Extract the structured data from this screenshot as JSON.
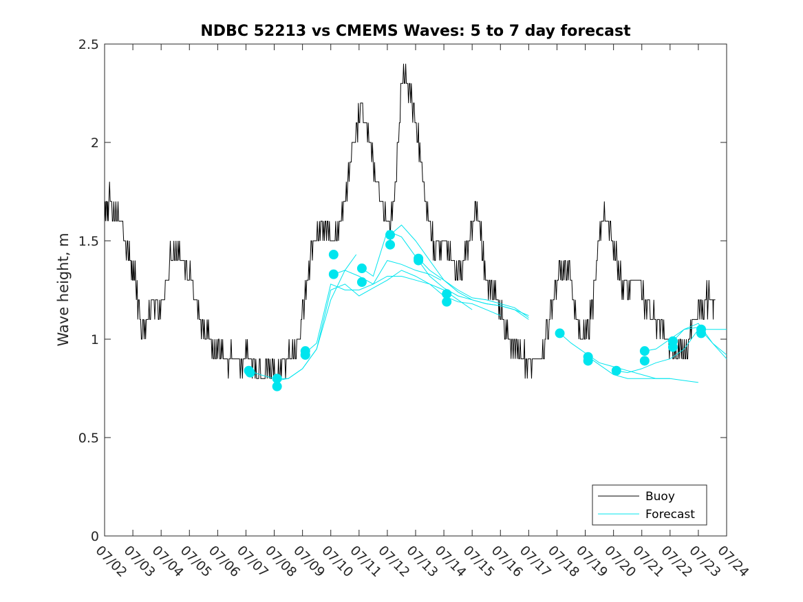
{
  "chart_data": {
    "type": "line",
    "title": "NDBC 52213 vs CMEMS Waves: 5 to 7 day forecast",
    "xlabel": "",
    "ylabel": "Wave height, m",
    "xlim": [
      "07/02",
      "07/24"
    ],
    "ylim": [
      0,
      2.5
    ],
    "categories": [
      "07/02",
      "07/03",
      "07/04",
      "07/05",
      "07/06",
      "07/07",
      "07/08",
      "07/09",
      "07/10",
      "07/11",
      "07/12",
      "07/13",
      "07/14",
      "07/15",
      "07/16",
      "07/17",
      "07/18",
      "07/19",
      "07/20",
      "07/21",
      "07/22",
      "07/23",
      "07/24"
    ],
    "yticks": [
      "0",
      "0.5",
      "1",
      "1.5",
      "2",
      "2.5"
    ],
    "grid": false,
    "legend_position": "bottom-right",
    "colors": {
      "buoy": "#000000",
      "forecast": "#00e5ee"
    },
    "series": [
      {
        "name": "Buoy",
        "x": [
          0.0,
          0.15,
          0.35,
          0.55,
          0.8,
          0.95,
          1.1,
          1.3,
          1.5,
          1.7,
          1.9,
          2.1,
          2.3,
          2.5,
          2.7,
          2.9,
          3.1,
          3.3,
          3.5,
          3.7,
          3.9,
          4.1,
          4.3,
          4.5,
          4.7,
          4.9,
          5.1,
          5.3,
          5.5,
          5.7,
          5.9,
          6.1,
          6.3,
          6.5,
          6.7,
          6.9,
          7.1,
          7.3,
          7.5,
          7.7,
          7.9,
          8.1,
          8.3,
          8.5,
          8.7,
          8.9,
          9.1,
          9.3,
          9.5,
          9.7,
          9.9,
          10.1,
          10.3,
          10.5,
          10.7,
          10.9,
          11.1,
          11.3,
          11.5,
          11.7,
          11.9,
          12.1,
          12.3,
          12.5,
          12.7,
          12.9,
          13.1,
          13.3,
          13.5,
          13.7,
          13.9,
          14.1,
          14.3,
          14.5,
          14.7,
          14.9,
          15.1,
          15.3,
          15.5,
          15.7,
          15.9,
          16.1,
          16.3,
          16.5,
          16.7,
          16.9,
          17.1,
          17.3,
          17.5,
          17.7,
          17.9,
          18.1,
          18.3,
          18.5,
          18.7,
          18.9,
          19.1,
          19.3,
          19.5,
          19.7,
          19.9,
          20.1,
          20.3,
          20.5,
          20.7,
          20.9,
          21.1,
          21.3,
          21.5,
          21.6
        ],
        "y": [
          1.58,
          1.7,
          1.65,
          1.6,
          1.45,
          1.35,
          1.3,
          1.0,
          1.1,
          1.2,
          1.15,
          1.2,
          1.4,
          1.45,
          1.4,
          1.35,
          1.3,
          1.15,
          1.05,
          1.0,
          0.95,
          0.92,
          0.9,
          0.9,
          0.9,
          0.9,
          0.9,
          0.85,
          0.83,
          0.82,
          0.85,
          0.82,
          0.86,
          0.9,
          0.95,
          1.0,
          1.2,
          1.45,
          1.55,
          1.6,
          1.55,
          1.5,
          1.6,
          1.7,
          1.9,
          2.05,
          2.2,
          2.05,
          1.9,
          1.75,
          1.65,
          1.55,
          1.8,
          2.3,
          2.3,
          2.2,
          2.0,
          1.75,
          1.55,
          1.45,
          1.5,
          1.45,
          1.4,
          1.35,
          1.4,
          1.5,
          1.65,
          1.55,
          1.3,
          1.25,
          1.2,
          1.1,
          1.0,
          0.95,
          0.92,
          0.9,
          0.88,
          0.9,
          0.95,
          1.05,
          1.25,
          1.35,
          1.38,
          1.3,
          1.1,
          1.0,
          1.05,
          1.2,
          1.55,
          1.65,
          1.55,
          1.4,
          1.3,
          1.25,
          1.28,
          1.3,
          1.2,
          1.15,
          1.1,
          1.05,
          1.0,
          0.95,
          0.92,
          0.95,
          1.02,
          1.1,
          1.15,
          1.2,
          1.2,
          1.2
        ]
      }
    ],
    "forecast_runs": [
      {
        "x": [
          5.1,
          5.5,
          6.0,
          6.5,
          7.0,
          7.5,
          8.0,
          8.5,
          8.9
        ],
        "y": [
          0.84,
          0.82,
          0.8,
          0.8,
          0.85,
          0.95,
          1.2,
          1.35,
          1.43
        ]
      },
      {
        "x": [
          6.1,
          6.5,
          7.0,
          7.5,
          8.0,
          8.5,
          9.0,
          9.5,
          10.0,
          10.5,
          11.0,
          11.5,
          12.0,
          12.5,
          13.0
        ],
        "y": [
          0.79,
          0.8,
          0.85,
          0.95,
          1.25,
          1.28,
          1.22,
          1.26,
          1.3,
          1.35,
          1.32,
          1.28,
          1.25,
          1.2,
          1.15
        ]
      },
      {
        "x": [
          7.1,
          7.5,
          8.0,
          8.5,
          9.0,
          9.5,
          10.0,
          10.5,
          11.0,
          11.5,
          12.0,
          12.5,
          13.0,
          13.5,
          14.0
        ],
        "y": [
          0.93,
          0.98,
          1.28,
          1.25,
          1.25,
          1.28,
          1.32,
          1.32,
          1.3,
          1.28,
          1.22,
          1.19,
          1.18,
          1.15,
          1.12
        ]
      },
      {
        "x": [
          8.1,
          8.5,
          9.0,
          9.5,
          10.0,
          10.5,
          11.0,
          11.5,
          11.9
        ],
        "y": [
          1.33,
          1.35,
          1.32,
          1.28,
          1.4,
          1.38,
          1.35,
          1.33,
          1.3
        ]
      },
      {
        "x": [
          9.1,
          9.5,
          10.0,
          10.5,
          11.0,
          11.5,
          12.0,
          12.5,
          13.0,
          13.5,
          14.0,
          14.5,
          15.0
        ],
        "y": [
          1.36,
          1.32,
          1.55,
          1.52,
          1.42,
          1.32,
          1.26,
          1.22,
          1.2,
          1.18,
          1.17,
          1.15,
          1.12
        ]
      },
      {
        "x": [
          10.1,
          10.5,
          11.0,
          11.5,
          12.0,
          12.5,
          13.0,
          13.5,
          14.0,
          14.5,
          15.0
        ],
        "y": [
          1.53,
          1.58,
          1.5,
          1.4,
          1.3,
          1.25,
          1.21,
          1.2,
          1.18,
          1.16,
          1.11
        ]
      },
      {
        "x": [
          11.1,
          11.5,
          12.0,
          12.5,
          13.0,
          13.5,
          14.0,
          14.5,
          15.0
        ],
        "y": [
          1.41,
          1.35,
          1.3,
          1.24,
          1.2,
          1.18,
          1.17,
          1.15,
          1.1
        ]
      },
      {
        "x": [
          16.1,
          16.5,
          17.0,
          17.5,
          18.0,
          18.5,
          19.0,
          19.5,
          20.0
        ],
        "y": [
          1.03,
          0.98,
          0.93,
          0.88,
          0.86,
          0.84,
          0.82,
          0.8,
          0.8
        ]
      },
      {
        "x": [
          17.1,
          17.5,
          18.0,
          18.5,
          19.0,
          19.5,
          20.0,
          20.5,
          21.0
        ],
        "y": [
          0.91,
          0.87,
          0.82,
          0.8,
          0.8,
          0.8,
          0.8,
          0.79,
          0.78
        ]
      },
      {
        "x": [
          18.1,
          18.5,
          19.0,
          19.5,
          20.0,
          20.5,
          21.0,
          21.5,
          22.0
        ],
        "y": [
          0.84,
          0.83,
          0.85,
          0.88,
          0.9,
          0.95,
          1.05,
          1.05,
          1.05
        ]
      },
      {
        "x": [
          19.1,
          19.5,
          20.0,
          20.5,
          21.0,
          21.5,
          22.0
        ],
        "y": [
          0.94,
          0.95,
          1.0,
          1.05,
          1.06,
          0.98,
          0.92
        ]
      },
      {
        "x": [
          20.1,
          20.5,
          21.0,
          21.5,
          22.0
        ],
        "y": [
          0.99,
          1.05,
          1.08,
          0.98,
          0.9
        ]
      }
    ],
    "forecast_markers": [
      {
        "x": 5.1,
        "y": 0.84
      },
      {
        "x": 5.15,
        "y": 0.83
      },
      {
        "x": 6.1,
        "y": 0.8
      },
      {
        "x": 6.1,
        "y": 0.76
      },
      {
        "x": 7.1,
        "y": 0.94
      },
      {
        "x": 7.1,
        "y": 0.92
      },
      {
        "x": 8.1,
        "y": 1.43
      },
      {
        "x": 8.1,
        "y": 1.33
      },
      {
        "x": 9.1,
        "y": 1.36
      },
      {
        "x": 9.1,
        "y": 1.29
      },
      {
        "x": 10.1,
        "y": 1.53
      },
      {
        "x": 10.1,
        "y": 1.48
      },
      {
        "x": 11.1,
        "y": 1.41
      },
      {
        "x": 11.1,
        "y": 1.4
      },
      {
        "x": 12.1,
        "y": 1.23
      },
      {
        "x": 12.1,
        "y": 1.19
      },
      {
        "x": 16.1,
        "y": 1.03
      },
      {
        "x": 17.1,
        "y": 0.91
      },
      {
        "x": 17.1,
        "y": 0.89
      },
      {
        "x": 18.1,
        "y": 0.84
      },
      {
        "x": 19.1,
        "y": 0.94
      },
      {
        "x": 19.1,
        "y": 0.89
      },
      {
        "x": 20.1,
        "y": 0.99
      },
      {
        "x": 20.1,
        "y": 0.96
      },
      {
        "x": 21.1,
        "y": 1.05
      },
      {
        "x": 21.1,
        "y": 1.03
      }
    ],
    "legend": [
      "Buoy",
      "Forecast"
    ]
  }
}
